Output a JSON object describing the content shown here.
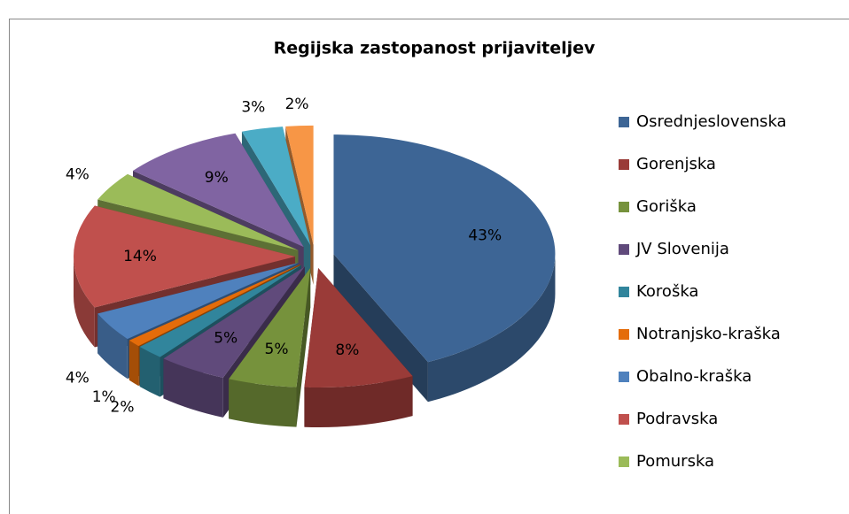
{
  "chart_data": {
    "type": "pie3d",
    "title": "Regijska zastopanost  prijaviteljev",
    "categories": [
      "Osrednjeslovenska",
      "Gorenjska",
      "Goriška",
      "JV Slovenija",
      "Koroška",
      "Notranjsko-kraška",
      "Obalno-kraška",
      "Podravska",
      "Pomurska",
      null,
      null,
      null
    ],
    "values": [
      43,
      8,
      5,
      5,
      2,
      1,
      4,
      14,
      4,
      9,
      3,
      2
    ],
    "value_labels": [
      "43%",
      "8%",
      "5%",
      "5%",
      "2%",
      "1%",
      "4%",
      "14%",
      "4%",
      "9%",
      "3%",
      "2%"
    ],
    "colors": [
      "#3d6595",
      "#9a3b38",
      "#76923c",
      "#604a7b",
      "#31859c",
      "#e46c0a",
      "#4f81bd",
      "#c0504d",
      "#9bbb59",
      "#8064a2",
      "#4bacc6",
      "#f79646"
    ],
    "legend": "right"
  }
}
